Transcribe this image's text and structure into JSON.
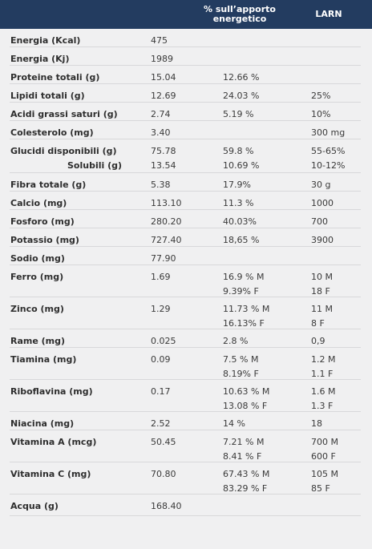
{
  "header": {
    "pct_label": "% sull’apporto energetico",
    "larn_label": "LARN"
  },
  "rows": [
    {
      "name": [
        "Energia (Kcal)"
      ],
      "value": [
        "475"
      ],
      "pct": [],
      "larn": []
    },
    {
      "name": [
        "Energia (Kj)"
      ],
      "value": [
        "1989"
      ],
      "pct": [],
      "larn": []
    },
    {
      "name": [
        "Proteine totali (g)"
      ],
      "value": [
        "15.04"
      ],
      "pct": [
        "12.66 %"
      ],
      "larn": []
    },
    {
      "name": [
        "Lipidi totali (g)"
      ],
      "value": [
        "12.69"
      ],
      "pct": [
        "24.03 %"
      ],
      "larn": [
        "25%"
      ]
    },
    {
      "name": [
        "Acidi grassi saturi (g)"
      ],
      "value": [
        "2.74"
      ],
      "pct": [
        "5.19 %"
      ],
      "larn": [
        "10%"
      ]
    },
    {
      "name": [
        "Colesterolo (mg)"
      ],
      "value": [
        "3.40"
      ],
      "pct": [],
      "larn": [
        "300 mg"
      ]
    },
    {
      "name": [
        "Glucidi disponibili (g)",
        "Solubili (g)"
      ],
      "value": [
        "75.78",
        "13.54"
      ],
      "pct": [
        "59.8 %",
        "10.69 %"
      ],
      "larn": [
        "55-65%",
        "10-12%"
      ]
    },
    {
      "name": [
        "Fibra totale (g)"
      ],
      "value": [
        "5.38"
      ],
      "pct": [
        "17.9%"
      ],
      "larn": [
        "30 g"
      ]
    },
    {
      "name": [
        "Calcio (mg)"
      ],
      "value": [
        "113.10"
      ],
      "pct": [
        "11.3 %"
      ],
      "larn": [
        "1000"
      ]
    },
    {
      "name": [
        "Fosforo (mg)"
      ],
      "value": [
        "280.20"
      ],
      "pct": [
        "40.03%"
      ],
      "larn": [
        "700"
      ]
    },
    {
      "name": [
        "Potassio (mg)"
      ],
      "value": [
        "727.40"
      ],
      "pct": [
        "18,65 %"
      ],
      "larn": [
        "3900"
      ]
    },
    {
      "name": [
        "Sodio (mg)"
      ],
      "value": [
        "77.90"
      ],
      "pct": [],
      "larn": []
    },
    {
      "name": [
        "Ferro (mg)"
      ],
      "value": [
        "1.69"
      ],
      "pct": [
        "16.9 % M",
        "9.39%  F"
      ],
      "larn": [
        "10 M",
        "18 F"
      ]
    },
    {
      "name": [
        "Zinco (mg)"
      ],
      "value": [
        "1.29"
      ],
      "pct": [
        "11.73 % M",
        "16.13% F"
      ],
      "larn": [
        "11 M",
        "8 F"
      ]
    },
    {
      "name": [
        "Rame (mg)"
      ],
      "value": [
        "0.025"
      ],
      "pct": [
        "2.8 %"
      ],
      "larn": [
        "0,9"
      ]
    },
    {
      "name": [
        "Tiamina (mg)"
      ],
      "value": [
        "0.09"
      ],
      "pct": [
        "7.5 % M",
        "8.19% F"
      ],
      "larn": [
        "1.2 M",
        "1.1 F"
      ]
    },
    {
      "name": [
        "Riboflavina (mg)"
      ],
      "value": [
        "0.17"
      ],
      "pct": [
        "10.63 % M",
        "13.08 % F"
      ],
      "larn": [
        "1.6 M",
        "1.3 F"
      ]
    },
    {
      "name": [
        "Niacina (mg)"
      ],
      "value": [
        "2.52"
      ],
      "pct": [
        "14 %"
      ],
      "larn": [
        "18"
      ]
    },
    {
      "name": [
        "Vitamina A (mcg)"
      ],
      "value": [
        "50.45"
      ],
      "pct": [
        "7.21 %  M",
        "8.41 %  F"
      ],
      "larn": [
        "700 M",
        "600 F"
      ]
    },
    {
      "name": [
        "Vitamina C (mg)"
      ],
      "value": [
        "70.80"
      ],
      "pct": [
        "67.43 % M",
        "83.29 % F"
      ],
      "larn": [
        "105 M",
        "85 F"
      ]
    },
    {
      "name": [
        "Acqua (g)"
      ],
      "value": [
        "168.40"
      ],
      "pct": [],
      "larn": []
    }
  ]
}
